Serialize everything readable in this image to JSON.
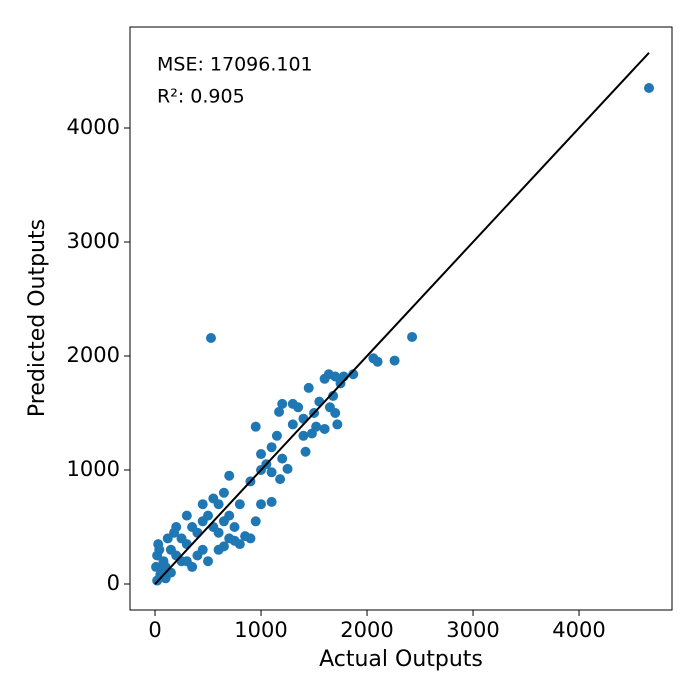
{
  "chart_data": {
    "type": "scatter",
    "xlabel": "Actual Outputs",
    "ylabel": "Predicted Outputs",
    "annotations": [
      "MSE: 17096.101",
      "R²: 0.905"
    ],
    "color": "#1f77b4",
    "x": [
      4660,
      528,
      2425,
      2060,
      2100,
      2260,
      1870,
      1780,
      1640,
      1700,
      20,
      50,
      30,
      80,
      100,
      150,
      200,
      250,
      300,
      350,
      400,
      450,
      500,
      550,
      600,
      650,
      700,
      750,
      800,
      200,
      300,
      450,
      700,
      900,
      850,
      950,
      950,
      1000,
      1050,
      1100,
      1150,
      1200,
      1170,
      1250,
      1300,
      1350,
      1400,
      1420,
      1450,
      1500,
      1520,
      1550,
      1600,
      1650,
      1700,
      1720,
      1680,
      1750,
      1600,
      900,
      1000,
      1100,
      1200,
      1300,
      600,
      650,
      700,
      750,
      800,
      500,
      400,
      300,
      150,
      100,
      10,
      20,
      40,
      60,
      120,
      180,
      250,
      350,
      450,
      550,
      650,
      600,
      1000,
      1100,
      1180,
      1400,
      1480
    ],
    "y": [
      4351,
      2158,
      2167,
      1980,
      1950,
      1960,
      1840,
      1820,
      1840,
      1820,
      30,
      80,
      350,
      200,
      150,
      300,
      250,
      400,
      350,
      500,
      450,
      300,
      600,
      500,
      700,
      550,
      600,
      500,
      700,
      500,
      600,
      700,
      950,
      400,
      420,
      550,
      1380,
      1140,
      1050,
      1200,
      1300,
      1580,
      1510,
      1010,
      1580,
      1550,
      1300,
      1160,
      1720,
      1500,
      1380,
      1600,
      1360,
      1550,
      1500,
      1400,
      1650,
      1760,
      1800,
      900,
      1000,
      980,
      1100,
      1400,
      450,
      330,
      400,
      380,
      350,
      200,
      250,
      200,
      100,
      50,
      150,
      250,
      300,
      120,
      400,
      450,
      200,
      150,
      550,
      750,
      800,
      300,
      700,
      720,
      920,
      1450,
      1320
    ],
    "line": {
      "color": "#000000",
      "x": [
        0,
        4660
      ],
      "y": [
        0,
        4660
      ]
    },
    "xlim": [
      -236,
      4877
    ],
    "ylim": [
      -228,
      4886
    ],
    "xticks": [
      0,
      1000,
      2000,
      3000,
      4000
    ],
    "yticks": [
      0,
      1000,
      2000,
      3000,
      4000
    ]
  }
}
